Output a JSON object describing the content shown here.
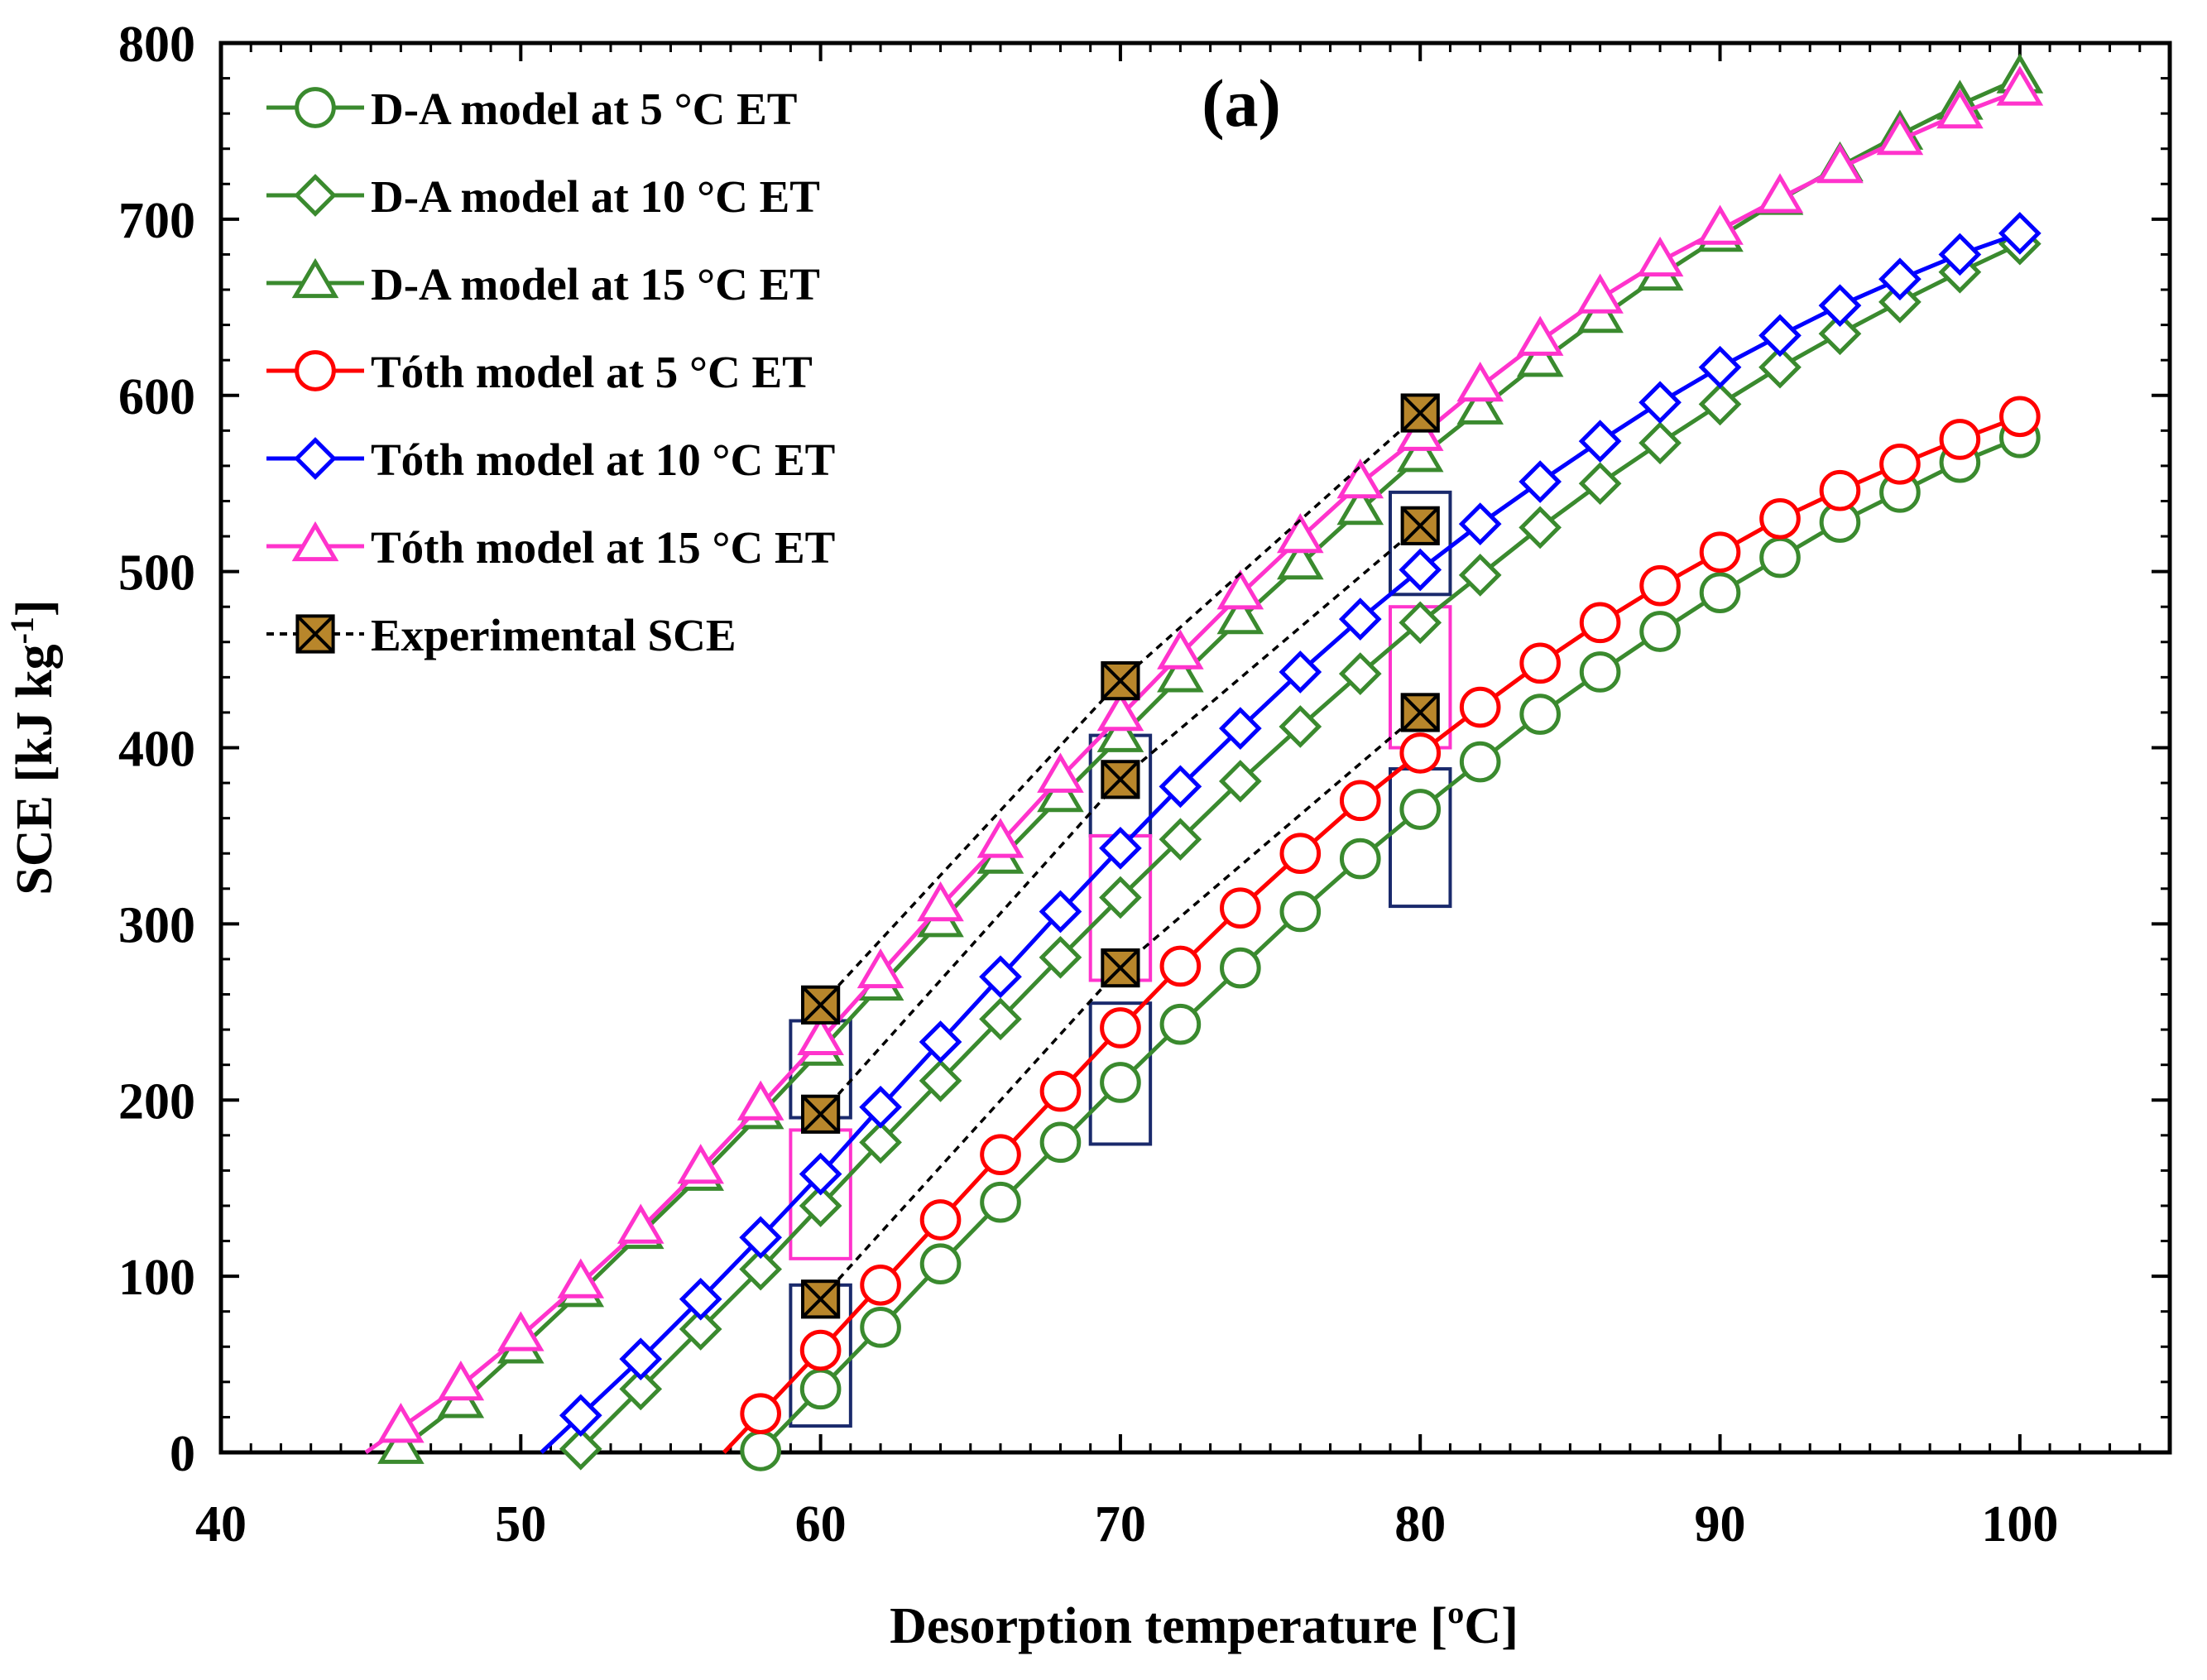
{
  "chart_data": {
    "type": "line",
    "annotation": "(a)",
    "xlabel": "Desorption temperature [ºC]",
    "ylabel_main": "SCE [kJ kg",
    "ylabel_sup": "-1",
    "ylabel_end": "]",
    "xlim": [
      40,
      105
    ],
    "ylim": [
      0,
      800
    ],
    "x_ticks": [
      40,
      50,
      60,
      70,
      80,
      90,
      100
    ],
    "y_ticks": [
      0,
      100,
      200,
      300,
      400,
      500,
      600,
      700,
      800
    ],
    "grid": false,
    "legend_position": "top-left",
    "colors": {
      "green": "#3a8a2e",
      "red": "#ff0000",
      "blue": "#0000ff",
      "magenta": "#ff33cc",
      "navy": "#1a2a6c",
      "black": "#000000",
      "marker_fill": "#b8862b"
    },
    "series": [
      {
        "name": "D-A model at 5 °C ET",
        "color": "#3a8a2e",
        "marker": "circle",
        "x": [
          58,
          60,
          62,
          64,
          66,
          68,
          70,
          72,
          74,
          76,
          78,
          80,
          82,
          84,
          86,
          88,
          90,
          92,
          94,
          96,
          98,
          100
        ],
        "y": [
          1,
          36,
          71,
          107,
          142,
          176,
          210,
          243,
          275,
          307,
          337,
          365,
          392,
          419,
          443,
          466,
          488,
          508,
          528,
          545,
          562,
          576
        ]
      },
      {
        "name": "D-A model at 10 °C ET",
        "color": "#3a8a2e",
        "marker": "diamond",
        "x": [
          52,
          54,
          56,
          58,
          60,
          62,
          64,
          66,
          68,
          70,
          72,
          74,
          76,
          78,
          80,
          82,
          84,
          86,
          88,
          90,
          92,
          94,
          96,
          98,
          100
        ],
        "y": [
          2,
          36,
          70,
          104,
          140,
          176,
          211,
          246,
          281,
          315,
          348,
          381,
          412,
          442,
          471,
          498,
          525,
          550,
          573,
          595,
          616,
          635,
          653,
          670,
          686
        ]
      },
      {
        "name": "D-A model at 15 °C ET",
        "color": "#3a8a2e",
        "marker": "triangle",
        "x": [
          46,
          48,
          50,
          52,
          54,
          56,
          58,
          60,
          62,
          64,
          66,
          68,
          70,
          72,
          74,
          76,
          78,
          80,
          82,
          84,
          86,
          88,
          90,
          92,
          94,
          96,
          98,
          100
        ],
        "y": [
          2,
          28,
          59,
          91,
          124,
          157,
          192,
          228,
          265,
          301,
          337,
          372,
          406,
          440,
          473,
          504,
          535,
          565,
          592,
          619,
          644,
          668,
          690,
          711,
          730,
          748,
          765,
          780
        ]
      },
      {
        "name": "Tóth model at 5 °C ET",
        "color": "#ff0000",
        "marker": "circle",
        "x": [
          58,
          60,
          62,
          64,
          66,
          68,
          70,
          72,
          74,
          76,
          78,
          80,
          82,
          84,
          86,
          88,
          90,
          92,
          94,
          96,
          98,
          100
        ],
        "y": [
          22,
          58,
          95,
          132,
          169,
          205,
          241,
          276,
          309,
          340,
          370,
          397,
          423,
          448,
          471,
          492,
          511,
          530,
          546,
          561,
          575,
          588
        ]
      },
      {
        "name": "Tóth model at 10 °C ET",
        "color": "#0000ff",
        "marker": "diamond",
        "x": [
          52,
          54,
          56,
          58,
          60,
          62,
          64,
          66,
          68,
          70,
          72,
          74,
          76,
          78,
          80,
          82,
          84,
          86,
          88,
          90,
          92,
          94,
          96,
          98,
          100
        ],
        "y": [
          21,
          53,
          87,
          122,
          158,
          196,
          233,
          270,
          307,
          343,
          378,
          411,
          443,
          473,
          501,
          527,
          551,
          574,
          596,
          616,
          634,
          651,
          666,
          680,
          692
        ]
      },
      {
        "name": "Tóth model at 15 °C ET",
        "color": "#ff33cc",
        "marker": "triangle",
        "x": [
          46,
          48,
          50,
          52,
          54,
          56,
          58,
          60,
          62,
          64,
          66,
          68,
          70,
          72,
          74,
          76,
          78,
          80,
          82,
          84,
          86,
          88,
          90,
          92,
          94,
          96,
          98,
          100
        ],
        "y": [
          14,
          38,
          66,
          96,
          127,
          161,
          197,
          234,
          272,
          310,
          346,
          383,
          418,
          453,
          487,
          519,
          550,
          577,
          605,
          631,
          655,
          676,
          694,
          712,
          729,
          745,
          760,
          773
        ]
      },
      {
        "name": "Experimental SCE",
        "color": "#000000",
        "marker": "square-x",
        "dashed": true,
        "groups": [
          {
            "x": [
              60,
              70,
              80
            ],
            "y": [
              254,
              438,
              590
            ]
          },
          {
            "x": [
              60,
              70,
              80
            ],
            "y": [
              192,
              382,
              526
            ]
          },
          {
            "x": [
              60,
              70,
              80
            ],
            "y": [
              87,
              275,
              420
            ]
          }
        ]
      }
    ],
    "highlight_boxes": [
      {
        "color": "#1a2a6c",
        "x": [
          59,
          61
        ],
        "y": [
          190,
          245
        ]
      },
      {
        "color": "#ff33cc",
        "x": [
          59,
          61
        ],
        "y": [
          110,
          183
        ]
      },
      {
        "color": "#1a2a6c",
        "x": [
          59,
          61
        ],
        "y": [
          15,
          95
        ]
      },
      {
        "color": "#1a2a6c",
        "x": [
          69,
          71
        ],
        "y": [
          350,
          407
        ]
      },
      {
        "color": "#ff33cc",
        "x": [
          69,
          71
        ],
        "y": [
          268,
          350
        ]
      },
      {
        "color": "#1a2a6c",
        "x": [
          69,
          71
        ],
        "y": [
          175,
          255
        ]
      },
      {
        "color": "#1a2a6c",
        "x": [
          79,
          81
        ],
        "y": [
          487,
          545
        ]
      },
      {
        "color": "#ff33cc",
        "x": [
          79,
          81
        ],
        "y": [
          400,
          480
        ]
      },
      {
        "color": "#1a2a6c",
        "x": [
          79,
          81
        ],
        "y": [
          310,
          388
        ]
      }
    ]
  }
}
